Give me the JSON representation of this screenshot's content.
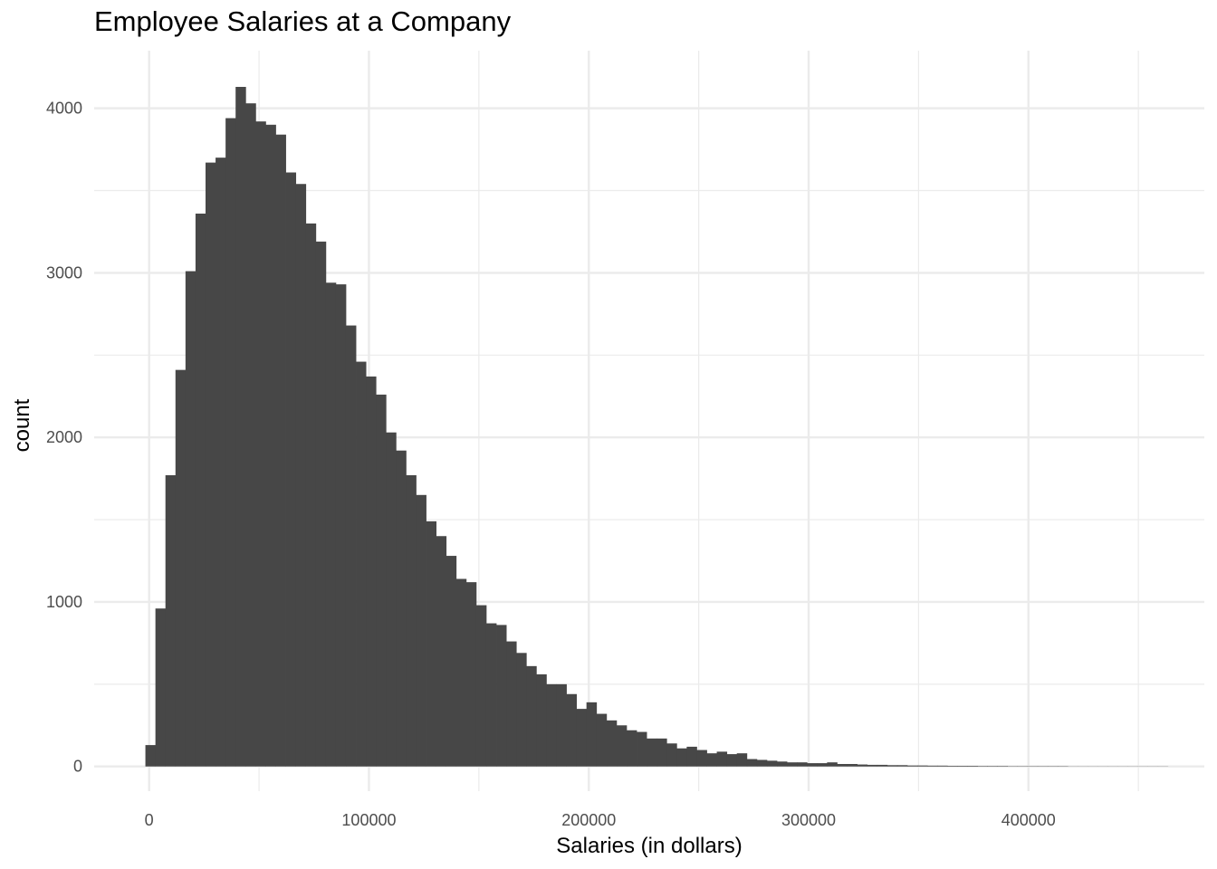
{
  "chart_data": {
    "type": "bar",
    "title": "Employee Salaries at a Company",
    "xlabel": "Salaries (in dollars)",
    "ylabel": "count",
    "colors": {
      "bar": "#474747",
      "grid": "#ebebeb",
      "tick_text": "#4d4d4d"
    },
    "grid": true,
    "xlim": [
      -25000,
      480000
    ],
    "ylim": [
      -150,
      4350
    ],
    "x_ticks": [
      0,
      100000,
      200000,
      300000,
      400000
    ],
    "x_tick_labels": [
      "0",
      "100000",
      "200000",
      "300000",
      "400000"
    ],
    "y_ticks": [
      0,
      1000,
      2000,
      3000,
      4000
    ],
    "y_tick_labels": [
      "0",
      "1000",
      "2000",
      "3000",
      "4000"
    ],
    "bin_width": 4560,
    "bin_start": -1700,
    "values": [
      130,
      960,
      1770,
      2410,
      3010,
      3360,
      3670,
      3700,
      3940,
      4130,
      4030,
      3920,
      3900,
      3840,
      3610,
      3540,
      3300,
      3190,
      2940,
      2930,
      2680,
      2460,
      2370,
      2260,
      2030,
      1920,
      1770,
      1650,
      1490,
      1400,
      1280,
      1140,
      1120,
      980,
      870,
      860,
      760,
      690,
      610,
      560,
      500,
      500,
      440,
      350,
      390,
      320,
      280,
      250,
      220,
      210,
      170,
      170,
      140,
      110,
      120,
      100,
      80,
      90,
      75,
      80,
      45,
      40,
      35,
      30,
      25,
      25,
      20,
      20,
      25,
      15,
      15,
      12,
      10,
      10,
      8,
      8,
      6,
      6,
      5,
      5,
      4,
      4,
      4,
      3,
      3,
      3,
      2,
      2,
      2,
      2,
      2,
      2,
      1,
      1,
      1,
      1,
      1,
      1,
      1,
      1,
      1,
      1
    ]
  }
}
